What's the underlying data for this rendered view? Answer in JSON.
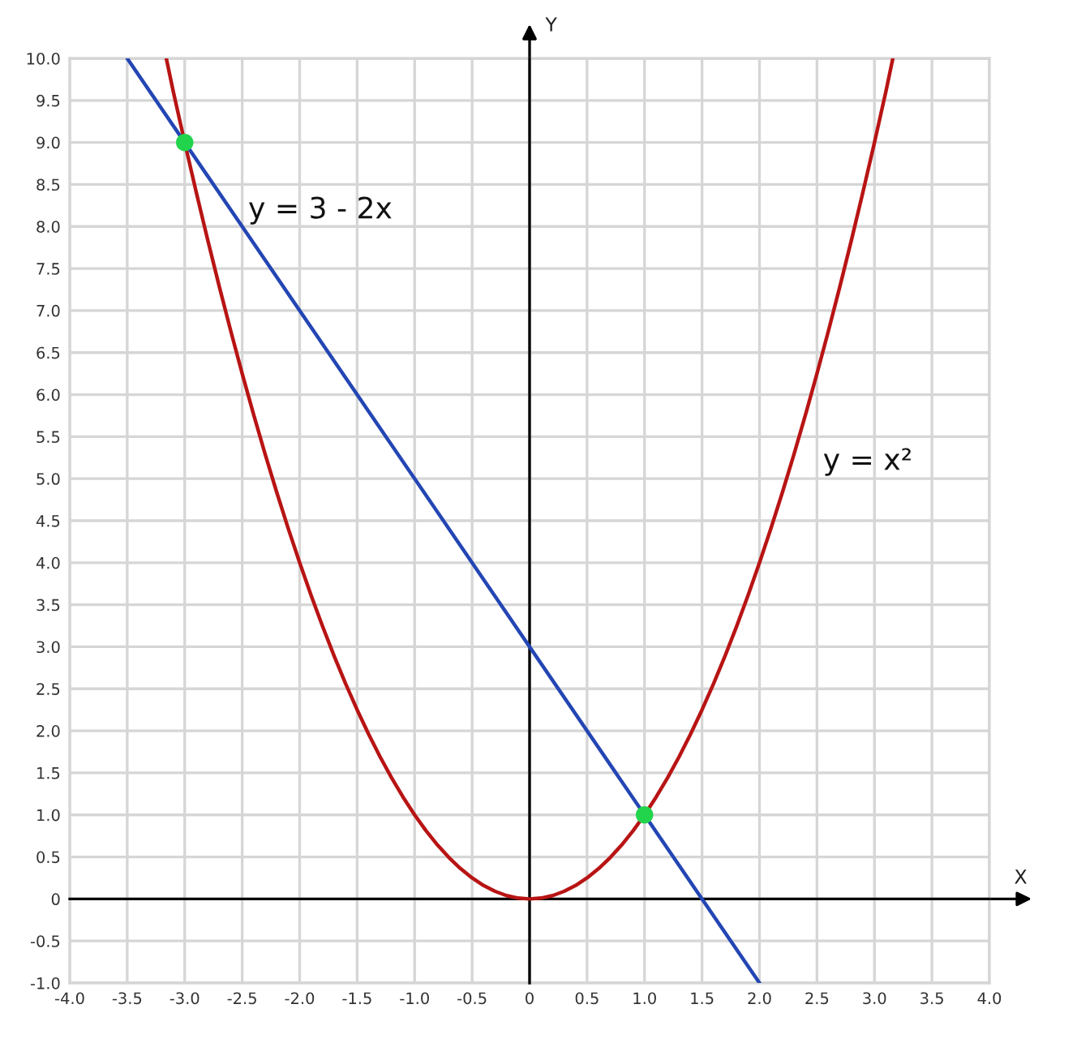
{
  "chart_data": {
    "type": "line",
    "xlabel": "X",
    "ylabel": "Y",
    "series": [
      {
        "name": "y = x²",
        "color": "#b81414",
        "x": [
          -3.16,
          -3.1,
          -3.0,
          -2.9,
          -2.8,
          -2.7,
          -2.6,
          -2.5,
          -2.4,
          -2.3,
          -2.2,
          -2.1,
          -2.0,
          -1.9,
          -1.8,
          -1.7,
          -1.6,
          -1.5,
          -1.4,
          -1.3,
          -1.2,
          -1.1,
          -1.0,
          -0.9,
          -0.8,
          -0.7,
          -0.6,
          -0.5,
          -0.4,
          -0.3,
          -0.2,
          -0.1,
          0,
          0.1,
          0.2,
          0.3,
          0.4,
          0.5,
          0.6,
          0.7,
          0.8,
          0.9,
          1.0,
          1.1,
          1.2,
          1.3,
          1.4,
          1.5,
          1.6,
          1.7,
          1.8,
          1.9,
          2.0,
          2.1,
          2.2,
          2.3,
          2.4,
          2.5,
          2.6,
          2.7,
          2.8,
          2.9,
          3.0,
          3.1,
          3.16
        ],
        "values": [
          10,
          9.61,
          9,
          8.41,
          7.84,
          7.29,
          6.76,
          6.25,
          5.76,
          5.29,
          4.84,
          4.41,
          4,
          3.61,
          3.24,
          2.89,
          2.56,
          2.25,
          1.96,
          1.69,
          1.44,
          1.21,
          1,
          0.81,
          0.64,
          0.49,
          0.36,
          0.25,
          0.16,
          0.09,
          0.04,
          0.01,
          0,
          0.01,
          0.04,
          0.09,
          0.16,
          0.25,
          0.36,
          0.49,
          0.64,
          0.81,
          1,
          1.21,
          1.44,
          1.69,
          1.96,
          2.25,
          2.56,
          2.89,
          3.24,
          3.61,
          4,
          4.41,
          4.84,
          5.29,
          5.76,
          6.25,
          6.76,
          7.29,
          7.84,
          8.41,
          9,
          9.61,
          10
        ]
      },
      {
        "name": "y = 3 - 2x",
        "color": "#2446b4",
        "x": [
          -3.5,
          2
        ],
        "values": [
          10,
          -1
        ]
      },
      {
        "type": "scatter",
        "color": "#22d44c",
        "marker": "circle",
        "x": [
          -3,
          1
        ],
        "values": [
          9,
          1
        ]
      }
    ],
    "xlim": [
      -4,
      4
    ],
    "ylim": [
      -1,
      10
    ],
    "xticks": [
      {
        "value": -4,
        "label": "-4.0"
      },
      {
        "value": -3.5,
        "label": "-3.5"
      },
      {
        "value": -3,
        "label": "-3.0"
      },
      {
        "value": -2.5,
        "label": "-2.5"
      },
      {
        "value": -2,
        "label": "-2.0"
      },
      {
        "value": -1.5,
        "label": "-1.5"
      },
      {
        "value": -1,
        "label": "-1.0"
      },
      {
        "value": -0.5,
        "label": "-0.5"
      },
      0,
      {
        "value": 0.5,
        "label": "0.5"
      },
      {
        "value": 1,
        "label": "1.0"
      },
      {
        "value": 1.5,
        "label": "1.5"
      },
      {
        "value": 2,
        "label": "2.0"
      },
      {
        "value": 2.5,
        "label": "2.5"
      },
      {
        "value": 3,
        "label": "3.0"
      },
      {
        "value": 3.5,
        "label": "3.5"
      },
      {
        "value": 4,
        "label": "4.0"
      }
    ],
    "yticks": [
      {
        "value": -1,
        "label": "-1.0"
      },
      {
        "value": -0.5,
        "label": "-0.5"
      },
      0,
      {
        "value": 0.5,
        "label": "0.5"
      },
      {
        "value": 1,
        "label": "1.0"
      },
      {
        "value": 1.5,
        "label": "1.5"
      },
      {
        "value": 2,
        "label": "2.0"
      },
      {
        "value": 2.5,
        "label": "2.5"
      },
      {
        "value": 3,
        "label": "3.0"
      },
      {
        "value": 3.5,
        "label": "3.5"
      },
      {
        "value": 4,
        "label": "4.0"
      },
      {
        "value": 4.5,
        "label": "4.5"
      },
      {
        "value": 5,
        "label": "5.0"
      },
      {
        "value": 5.5,
        "label": "5.5"
      },
      {
        "value": 6,
        "label": "6.0"
      },
      {
        "value": 6.5,
        "label": "6.5"
      },
      {
        "value": 7,
        "label": "7.0"
      },
      {
        "value": 7.5,
        "label": "7.5"
      },
      {
        "value": 8,
        "label": "8.0"
      },
      {
        "value": 8.5,
        "label": "8.5"
      },
      {
        "value": 9,
        "label": "9.0"
      },
      {
        "value": 9.5,
        "label": "9.5"
      },
      {
        "value": 10,
        "label": "10.0"
      }
    ],
    "grid": true
  }
}
